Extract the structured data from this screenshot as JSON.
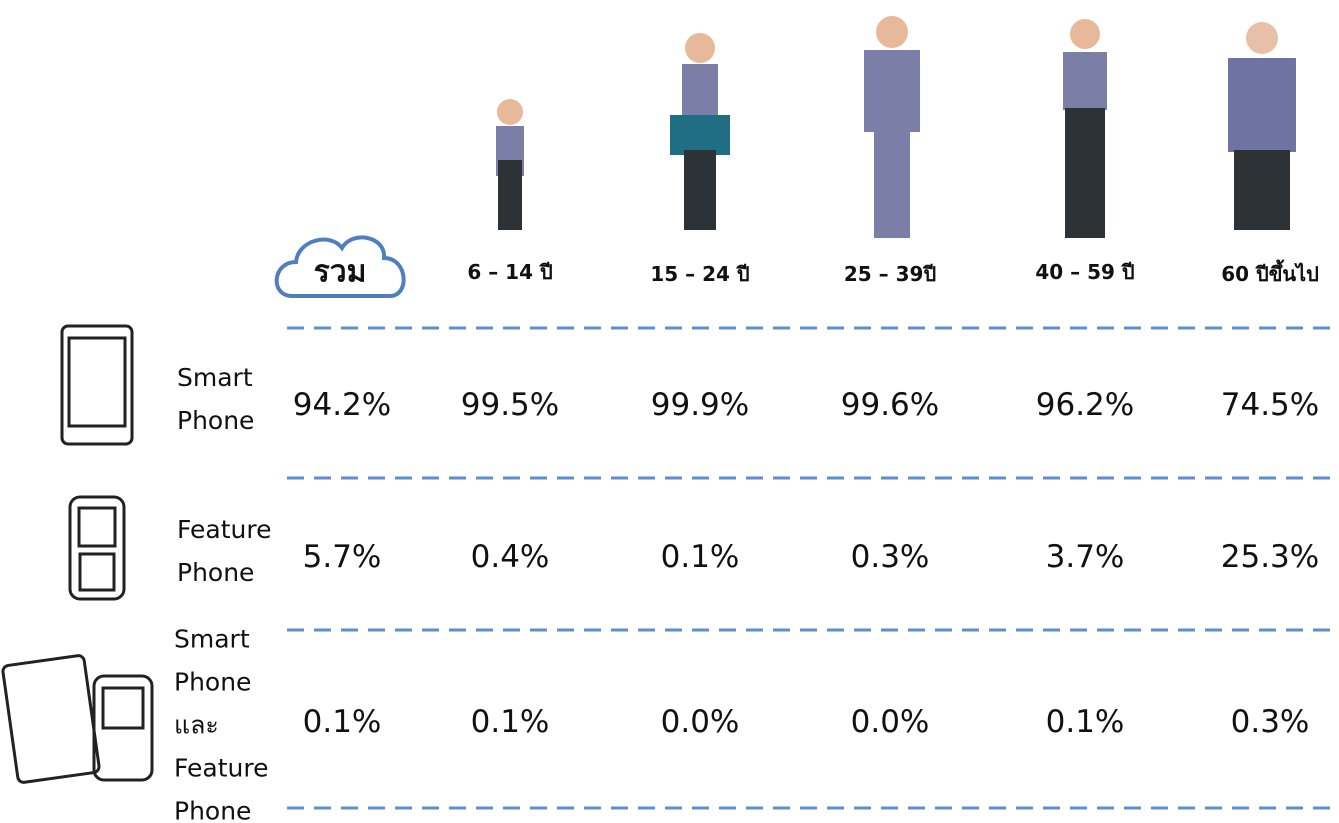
{
  "table": {
    "columns": [
      "รวม",
      "6 – 14 ปี",
      "15 – 24 ปี",
      "25 – 39ปี",
      "40 – 59 ปี",
      "60 ปีขึ้นไป"
    ],
    "rows": [
      {
        "label": "Smart Phone",
        "values": [
          "94.2%",
          "99.5%",
          "99.9%",
          "99.6%",
          "96.2%",
          "74.5%"
        ]
      },
      {
        "label": "Feature Phone",
        "values": [
          "5.7%",
          "0.4%",
          "0.1%",
          "0.3%",
          "3.7%",
          "25.3%"
        ]
      },
      {
        "label": "Smart Phone และ Feature Phone",
        "values": [
          "0.1%",
          "0.1%",
          "0.0%",
          "0.0%",
          "0.1%",
          "0.3%"
        ]
      }
    ]
  }
}
